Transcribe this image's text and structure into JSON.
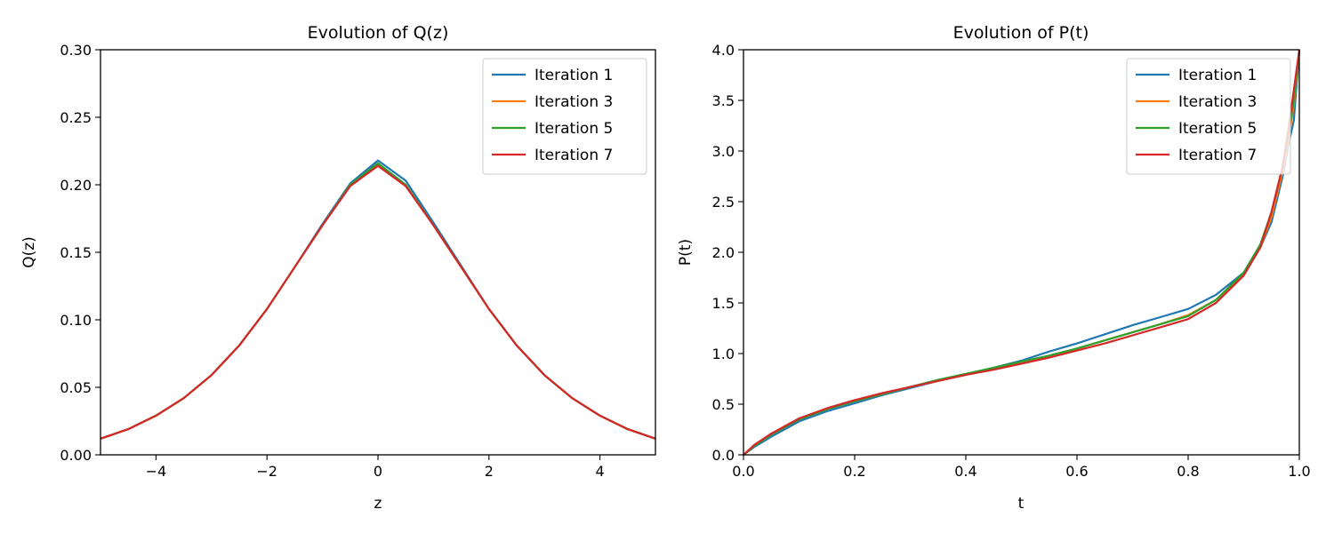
{
  "chart_data": [
    {
      "type": "line",
      "title": "Evolution of Q(z)",
      "xlabel": "z",
      "ylabel": "Q(z)",
      "xlim": [
        -5,
        5
      ],
      "ylim": [
        0,
        0.3
      ],
      "xticks": [
        -4,
        -2,
        0,
        2,
        4
      ],
      "xtick_labels": [
        "−4",
        "−2",
        "0",
        "2",
        "4"
      ],
      "yticks": [
        0,
        0.05,
        0.1,
        0.15,
        0.2,
        0.25,
        0.3
      ],
      "ytick_labels": [
        "0.00",
        "0.05",
        "0.10",
        "0.15",
        "0.20",
        "0.25",
        "0.30"
      ],
      "grid": false,
      "legend_position": "top-right",
      "x": [
        -5,
        -4.5,
        -4,
        -3.5,
        -3,
        -2.5,
        -2,
        -1.5,
        -1,
        -0.5,
        0,
        0.5,
        1,
        1.5,
        2,
        2.5,
        3,
        3.5,
        4,
        4.5,
        5
      ],
      "series": [
        {
          "name": "Iteration 1",
          "color": "#1f77b4",
          "values": [
            0.012,
            0.019,
            0.029,
            0.042,
            0.059,
            0.081,
            0.108,
            0.139,
            0.171,
            0.201,
            0.218,
            0.203,
            0.172,
            0.14,
            0.108,
            0.081,
            0.059,
            0.042,
            0.029,
            0.019,
            0.012
          ]
        },
        {
          "name": "Iteration 3",
          "color": "#ff7f0e",
          "values": [
            0.012,
            0.019,
            0.029,
            0.042,
            0.059,
            0.081,
            0.108,
            0.139,
            0.17,
            0.2,
            0.215,
            0.2,
            0.17,
            0.139,
            0.108,
            0.081,
            0.059,
            0.042,
            0.029,
            0.019,
            0.012
          ]
        },
        {
          "name": "Iteration 5",
          "color": "#2ca02c",
          "values": [
            0.012,
            0.019,
            0.029,
            0.042,
            0.059,
            0.081,
            0.108,
            0.139,
            0.17,
            0.2,
            0.216,
            0.2,
            0.17,
            0.139,
            0.108,
            0.081,
            0.059,
            0.042,
            0.029,
            0.019,
            0.012
          ]
        },
        {
          "name": "Iteration 7",
          "color": "#d62728",
          "values": [
            0.012,
            0.019,
            0.029,
            0.042,
            0.059,
            0.081,
            0.108,
            0.139,
            0.17,
            0.199,
            0.214,
            0.199,
            0.17,
            0.139,
            0.108,
            0.081,
            0.059,
            0.042,
            0.029,
            0.019,
            0.012
          ]
        }
      ]
    },
    {
      "type": "line",
      "title": "Evolution of P(t)",
      "xlabel": "t",
      "ylabel": "P(t)",
      "xlim": [
        0,
        1
      ],
      "ylim": [
        0,
        4
      ],
      "xticks": [
        0,
        0.2,
        0.4,
        0.6,
        0.8,
        1.0
      ],
      "xtick_labels": [
        "0.0",
        "0.2",
        "0.4",
        "0.6",
        "0.8",
        "1.0"
      ],
      "yticks": [
        0,
        0.5,
        1.0,
        1.5,
        2.0,
        2.5,
        3.0,
        3.5,
        4.0
      ],
      "ytick_labels": [
        "0.0",
        "0.5",
        "1.0",
        "1.5",
        "2.0",
        "2.5",
        "3.0",
        "3.5",
        "4.0"
      ],
      "grid": false,
      "legend_position": "top-right",
      "x": [
        0,
        0.02,
        0.05,
        0.1,
        0.15,
        0.2,
        0.25,
        0.3,
        0.35,
        0.4,
        0.45,
        0.5,
        0.55,
        0.6,
        0.65,
        0.7,
        0.75,
        0.8,
        0.85,
        0.9,
        0.93,
        0.95,
        0.97,
        0.98,
        0.99,
        1.0
      ],
      "series": [
        {
          "name": "Iteration 1",
          "color": "#1f77b4",
          "values": [
            0.0,
            0.08,
            0.18,
            0.33,
            0.43,
            0.51,
            0.59,
            0.66,
            0.73,
            0.79,
            0.86,
            0.93,
            1.02,
            1.1,
            1.19,
            1.28,
            1.36,
            1.44,
            1.58,
            1.8,
            2.05,
            2.3,
            2.75,
            3.05,
            3.3,
            4.0
          ]
        },
        {
          "name": "Iteration 3",
          "color": "#ff7f0e",
          "values": [
            0.0,
            0.09,
            0.2,
            0.35,
            0.45,
            0.53,
            0.6,
            0.67,
            0.73,
            0.79,
            0.85,
            0.91,
            0.98,
            1.05,
            1.13,
            1.21,
            1.29,
            1.38,
            1.53,
            1.78,
            2.05,
            2.35,
            2.8,
            3.1,
            3.45,
            4.0
          ]
        },
        {
          "name": "Iteration 5",
          "color": "#2ca02c",
          "values": [
            0.0,
            0.09,
            0.2,
            0.35,
            0.45,
            0.53,
            0.6,
            0.67,
            0.74,
            0.8,
            0.86,
            0.92,
            0.98,
            1.05,
            1.13,
            1.21,
            1.29,
            1.37,
            1.53,
            1.8,
            2.08,
            2.4,
            2.85,
            3.15,
            3.5,
            4.0
          ]
        },
        {
          "name": "Iteration 7",
          "color": "#d62728",
          "values": [
            0.0,
            0.1,
            0.21,
            0.36,
            0.46,
            0.54,
            0.61,
            0.67,
            0.73,
            0.79,
            0.84,
            0.9,
            0.96,
            1.03,
            1.1,
            1.18,
            1.26,
            1.34,
            1.5,
            1.77,
            2.05,
            2.4,
            2.85,
            3.2,
            3.6,
            4.0
          ]
        }
      ]
    }
  ]
}
